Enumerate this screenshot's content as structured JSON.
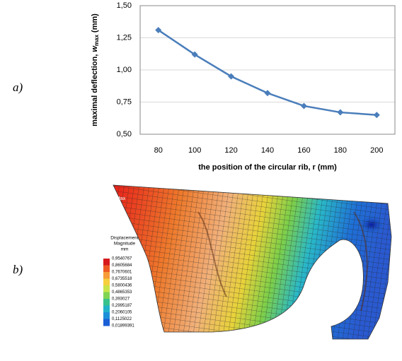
{
  "chart_data": {
    "type": "line",
    "y_label": {
      "text": "maximal deflection, ",
      "var": "w",
      "sub": "max",
      "unit": "(mm)"
    },
    "x_label": "the position of the circular rib, r  (mm)",
    "categories": [
      80,
      100,
      120,
      140,
      160,
      180,
      200
    ],
    "values": [
      1.31,
      1.12,
      0.95,
      0.82,
      0.72,
      0.67,
      0.65
    ],
    "color": "#4a7ebb",
    "ylim": [
      0.5,
      1.5
    ],
    "yticks": [
      {
        "value": 0.5,
        "label": "0,50"
      },
      {
        "value": 0.75,
        "label": "0,75"
      },
      {
        "value": 1.0,
        "label": "1,00"
      },
      {
        "value": 1.25,
        "label": "1,25"
      },
      {
        "value": 1.5,
        "label": "1,50"
      }
    ],
    "grid": true
  },
  "panels": [
    "a)",
    "b)"
  ],
  "fe_plot": {
    "legend_title": [
      "Displacement",
      "Magnitude",
      "mm"
    ],
    "legend_labels": [
      "0,9540767",
      "0,8605684",
      "0,7670601",
      "0,6735518",
      "0,5800436",
      "0,4865353",
      "0,393027",
      "0,2995187",
      "0,2060105",
      "0,1125022",
      "0,01899391"
    ],
    "max_label": "Max"
  }
}
